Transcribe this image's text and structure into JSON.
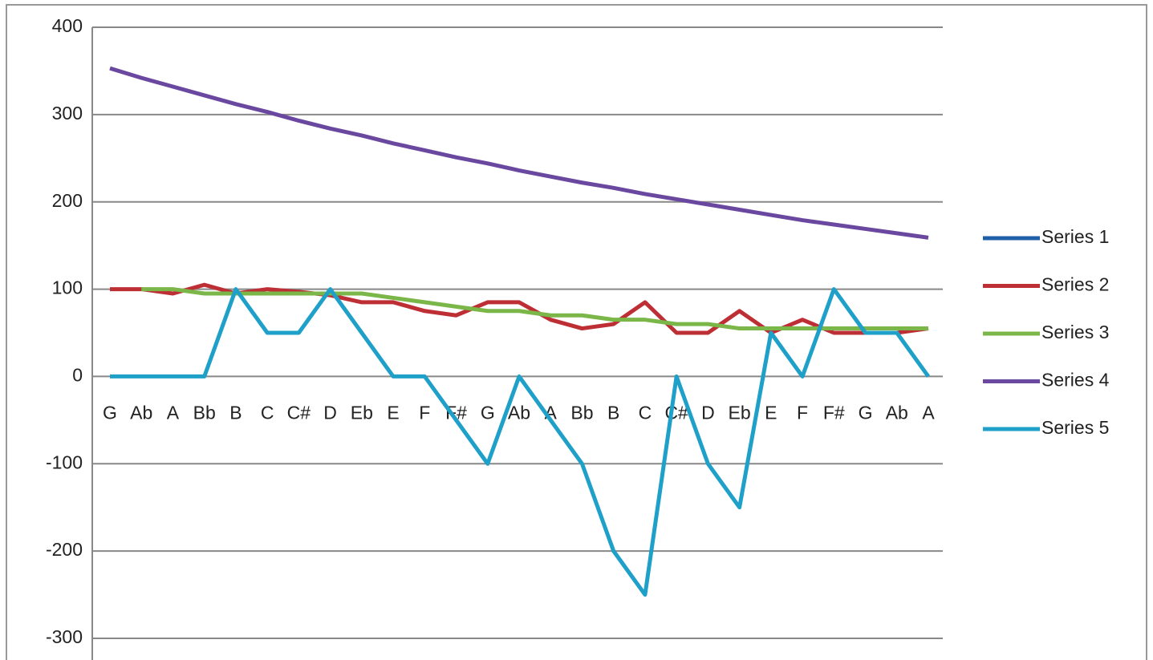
{
  "chart_data": {
    "type": "line",
    "categories": [
      "G",
      "Ab",
      "A",
      "Bb",
      "B",
      "C",
      "C#",
      "D",
      "Eb",
      "E",
      "F",
      "F#",
      "G",
      "Ab",
      "A",
      "Bb",
      "B",
      "C",
      "C#",
      "D",
      "Eb",
      "E",
      "F",
      "F#",
      "G",
      "Ab",
      "A"
    ],
    "ylim": [
      -300,
      400
    ],
    "yticks": [
      -300,
      -200,
      -100,
      0,
      100,
      200,
      300,
      400
    ],
    "grid": true,
    "legend": "right",
    "series": [
      {
        "name": "Series 1",
        "color": "#1f5fa8",
        "values": [
          null,
          null,
          null,
          null,
          null,
          null,
          null,
          null,
          null,
          null,
          null,
          null,
          null,
          null,
          null,
          null,
          null,
          null,
          null,
          null,
          null,
          null,
          null,
          null,
          null,
          null,
          null
        ]
      },
      {
        "name": "Series 2",
        "color": "#be2f35",
        "values": [
          100,
          100,
          95,
          105,
          95,
          100,
          97,
          93,
          85,
          85,
          75,
          70,
          85,
          85,
          65,
          55,
          60,
          85,
          50,
          50,
          75,
          50,
          65,
          50,
          50,
          50,
          55
        ]
      },
      {
        "name": "Series 3",
        "color": "#7ab648",
        "values": [
          null,
          100,
          100,
          95,
          95,
          95,
          95,
          95,
          95,
          90,
          85,
          80,
          75,
          75,
          70,
          70,
          65,
          65,
          60,
          60,
          55,
          55,
          55,
          55,
          55,
          55,
          55
        ]
      },
      {
        "name": "Series 4",
        "color": "#6a48a0",
        "values": [
          353,
          342,
          332,
          322,
          312,
          303,
          293,
          284,
          276,
          267,
          259,
          251,
          244,
          236,
          229,
          222,
          216,
          209,
          203,
          197,
          191,
          185,
          179,
          174,
          169,
          164,
          159
        ]
      },
      {
        "name": "Series 5",
        "color": "#1ea0c8",
        "values": [
          0,
          0,
          0,
          0,
          100,
          50,
          50,
          100,
          50,
          0,
          0,
          -50,
          -100,
          0,
          -50,
          -100,
          -200,
          -250,
          0,
          -100,
          -150,
          50,
          0,
          100,
          50,
          50,
          0
        ]
      }
    ]
  }
}
